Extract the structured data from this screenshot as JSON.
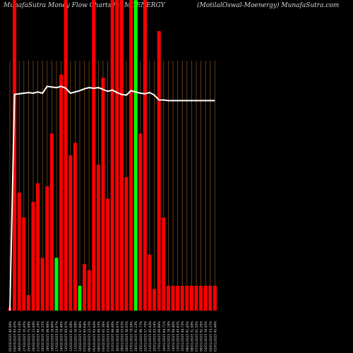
{
  "title_left": "MunafaSutra  Money Flow  Charts for MOENERGY",
  "title_right": "(MotilalOswal-Moenergy) MunafaSutra.com",
  "colors": {
    "background": "#000000",
    "up": "#ff0000",
    "down": "#00ff00",
    "line": "#ffffff",
    "grid": "#7a4a1a",
    "text": "#d8d8d8"
  },
  "chart_data": {
    "type": "bar",
    "ylim": [
      0,
      100
    ],
    "categories": [
      "05 Mar 2025",
      "03 Mar 2025",
      "28 Feb 2025",
      "27 Feb 2025",
      "25 Feb 2025",
      "24 Feb 2025",
      "21 Feb 2025",
      "20 Feb 2025",
      "19 Feb 2025",
      "18 Feb 2025",
      "17 Feb 2025",
      "14 Feb 2025",
      "13 Feb 2025",
      "12 Feb 2025",
      "11 Feb 2025",
      "10 Feb 2025",
      "07 Feb 2025",
      "06 Feb 2025",
      "05 Feb 2025",
      "04 Feb 2025",
      "03 Feb 2025",
      "01 Feb 2025",
      "31 Jan 2025",
      "30 Jan 2025",
      "29 Jan 2025",
      "28 Jan 2025",
      "27 Jan 2025",
      "24 Jan 2025",
      "23 Jan 2025",
      "22 Jan 2025",
      "21 Jan 2025",
      "20 Jan 2025",
      "17 Jan 2025",
      "16 Jan 2025",
      "15 Jan 2025",
      "14 Jan 2025",
      "13 Jan 2025",
      "10 Jan 2025",
      "09 Jan 2025",
      "08 Jan 2025",
      "07 Jan 2025",
      "06 Jan 2025",
      "03 Jan 2025",
      "02 Jan 2025",
      "01 Jan 2025"
    ],
    "values": [
      1,
      100,
      38,
      30,
      5,
      35,
      41,
      17,
      40,
      57,
      17,
      76,
      100,
      50,
      54,
      8,
      15,
      13,
      100,
      47,
      75,
      36,
      100,
      100,
      100,
      43,
      100,
      100,
      57,
      100,
      18,
      7,
      90,
      30,
      8,
      8,
      8,
      8,
      8,
      8,
      8,
      8,
      8,
      8,
      8
    ],
    "directions": [
      "up",
      "up",
      "up",
      "up",
      "up",
      "up",
      "up",
      "up",
      "up",
      "up",
      "down",
      "up",
      "up",
      "up",
      "up",
      "down",
      "up",
      "up",
      "up",
      "up",
      "up",
      "up",
      "up",
      "up",
      "up",
      "up",
      "up",
      "down",
      "up",
      "up",
      "up",
      "up",
      "up",
      "up",
      "up",
      "up",
      "up",
      "up",
      "up",
      "up",
      "up",
      "up",
      "up",
      "up",
      "up"
    ],
    "line_values": [
      0,
      69.6,
      69.8,
      70.0,
      70.2,
      70.0,
      70.4,
      70.0,
      72.2,
      72.0,
      71.8,
      72.2,
      71.6,
      70.0,
      70.4,
      70.8,
      71.4,
      71.8,
      71.6,
      71.8,
      71.2,
      70.6,
      71.0,
      70.2,
      69.6,
      69.4,
      70.8,
      70.4,
      70.0,
      69.8,
      70.2,
      69.4,
      67.8,
      67.8,
      67.6,
      67.6,
      67.6,
      67.6,
      67.6,
      67.6,
      67.6,
      67.6,
      67.6,
      67.6,
      67.6
    ],
    "xtick_labels": [
      "05/03/2025 40.06%",
      "03/03/2025 93.45%",
      "28/02/2025 54.24%",
      "27/02/2025 35.45%",
      "25/02/2025 75.09%",
      "24/02/2025 23.44%",
      "21/02/2025 40.24%",
      "20/02/2025 16.25%",
      "19/02/2025 46.98%",
      "18/02/2025 16.86%",
      "17/02/2025 54.67%",
      "14/02/2025 70.46%",
      "13/02/2025 93.07%",
      "12/02/2025 81.09%",
      "11/02/2025 56.09%",
      "10/02/2025 37.66%",
      "07/02/2025 45.64%",
      "06/02/2025 23.15%",
      "05/02/2025 92.84%",
      "04/02/2025 49.53%",
      "03/02/2025 65.38%",
      "01/02/2025 53.40%",
      "31/01/2025 94.44%",
      "30/01/2025 88.07%",
      "29/01/2025 55.83%",
      "28/01/2025 36.05%",
      "27/01/2025 79.34%",
      "24/01/2025 91.23%",
      "23/01/2025 96.77%",
      "22/01/2025 57.70%",
      "21/01/2025 45.43%",
      "20/01/2025 93.54%",
      "17/01/2025 68.88%",
      "16/01/2025 84.71%",
      "15/01/2025 19.18%",
      "14/01/2025 94.46%",
      "13/01/2025 45.62%",
      "10/01/2025 44.73%",
      "09/01/2025 91.45%",
      "08/01/2025 31.08%",
      "07/01/2025 61.50%",
      "06/01/2025 92.26%",
      "03/01/2025 34.42%",
      "02/01/2025 53.17%",
      "01/01/2025 45.44%"
    ]
  }
}
